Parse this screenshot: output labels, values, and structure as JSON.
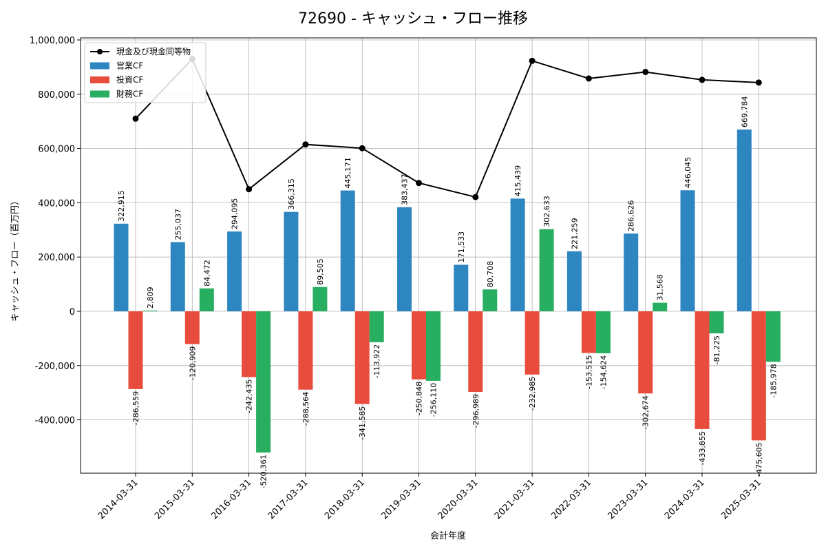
{
  "chart_data": {
    "type": "bar",
    "title": "72690 - キャッシュ・フロー推移",
    "xlabel": "会計年度",
    "ylabel": "キャッシュ・フロー（百万円）",
    "ylim": [
      -600000,
      1020000
    ],
    "yticks": [
      -400000,
      -200000,
      0,
      200000,
      400000,
      600000,
      800000,
      1000000
    ],
    "ytick_labels": [
      "-400,000",
      "-200,000",
      "0",
      "200,000",
      "400,000",
      "600,000",
      "800,000",
      "1,000,000"
    ],
    "grid": true,
    "legend_position": "top-left",
    "categories": [
      "2014-03-31",
      "2015-03-31",
      "2016-03-31",
      "2017-03-31",
      "2018-03-31",
      "2019-03-31",
      "2020-03-31",
      "2021-03-31",
      "2022-03-31",
      "2023-03-31",
      "2024-03-31",
      "2025-03-31"
    ],
    "series": [
      {
        "name": "営業CF",
        "kind": "bar",
        "color": "#2e86c1",
        "values": [
          322915,
          255037,
          294095,
          366315,
          445171,
          383437,
          171533,
          415439,
          221259,
          286626,
          446045,
          669784
        ],
        "labels": [
          "322,915",
          "255,037",
          "294,095",
          "366,315",
          "445,171",
          "383,437",
          "171,533",
          "415,439",
          "221,259",
          "286,626",
          "446,045",
          "669,784"
        ]
      },
      {
        "name": "投資CF",
        "kind": "bar",
        "color": "#e74c3c",
        "values": [
          -286559,
          -120909,
          -242435,
          -288564,
          -341585,
          -250848,
          -296989,
          -232985,
          -153515,
          -302674,
          -433855,
          -475605
        ],
        "labels": [
          "-286,559",
          "-120,909",
          "-242,435",
          "-288,564",
          "-341,585",
          "-250,848",
          "-296,989",
          "-232,985",
          "-153,515",
          "-302,674",
          "-433,855",
          "-475,605"
        ]
      },
      {
        "name": "財務CF",
        "kind": "bar",
        "color": "#27ae60",
        "values": [
          2809,
          84472,
          -520361,
          89505,
          -113922,
          -256110,
          80708,
          302633,
          -154624,
          31568,
          -81225,
          -185978
        ],
        "labels": [
          "2,809",
          "84,472",
          "-520,361",
          "89,505",
          "-113,922",
          "-256,110",
          "80,708",
          "302,633",
          "-154,624",
          "31,568",
          "-81,225",
          "-185,978"
        ]
      },
      {
        "name": "現金及び現金同等物",
        "kind": "line",
        "color": "#000000",
        "values": [
          710000,
          930000,
          450000,
          615000,
          601000,
          473000,
          421000,
          923000,
          858000,
          882000,
          853000,
          843000
        ]
      }
    ]
  }
}
